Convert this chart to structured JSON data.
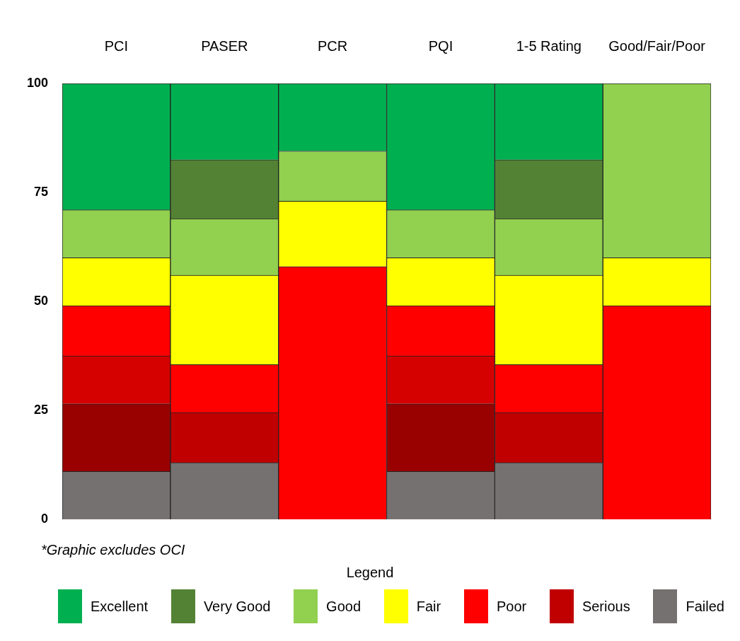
{
  "chart_data": {
    "type": "bar",
    "stacked": true,
    "categories": [
      "PCI",
      "PASER",
      "PCR",
      "PQI",
      "1-5 Rating",
      "Good/Fair/Poor"
    ],
    "ylim": [
      0,
      100
    ],
    "yticks": [
      0,
      25,
      50,
      75,
      100
    ],
    "grid": false,
    "legend": "bottom",
    "legend_title": "Legend",
    "annotations": [
      "*Graphic excludes OCI"
    ],
    "series": [
      {
        "name": "Failed",
        "color": "#767171",
        "values": [
          11,
          13,
          null,
          11,
          13,
          null
        ]
      },
      {
        "color": "#990000",
        "values": [
          15.5,
          null,
          null,
          15.5,
          null,
          null
        ]
      },
      {
        "name": "Serious",
        "color": "#c00000",
        "values": [
          null,
          11.5,
          null,
          null,
          11.5,
          null
        ]
      },
      {
        "color": "#d50000",
        "values": [
          11,
          null,
          null,
          11,
          null,
          null
        ]
      },
      {
        "name": "Poor",
        "color": "#ff0000",
        "values": [
          11.5,
          11,
          58,
          11.5,
          11,
          49
        ]
      },
      {
        "name": "Fair",
        "color": "#ffff00",
        "values": [
          11,
          20.5,
          15,
          11,
          20.5,
          11
        ]
      },
      {
        "name": "Good",
        "color": "#92d050",
        "values": [
          11,
          13,
          11.5,
          11,
          13,
          40
        ]
      },
      {
        "name": "Very Good",
        "color": "#548235",
        "values": [
          null,
          13.5,
          null,
          null,
          13.5,
          null
        ]
      },
      {
        "name": "Excellent",
        "color": "#00b050",
        "values": [
          29,
          17.5,
          15.5,
          29,
          17.5,
          null
        ]
      }
    ]
  }
}
